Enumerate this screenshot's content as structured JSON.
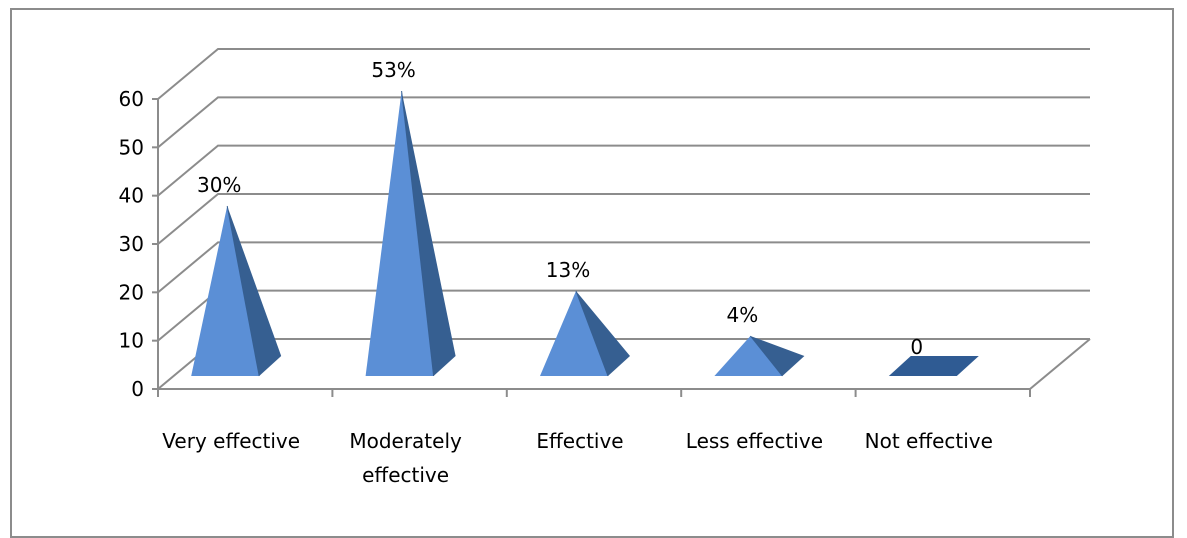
{
  "chart_data": {
    "type": "bar",
    "categories": [
      "Very effective",
      "Moderately effective",
      "Effective",
      "Less effective",
      "Not effective"
    ],
    "category_lines": [
      [
        "Very effective"
      ],
      [
        "Moderately",
        "effective"
      ],
      [
        "Effective"
      ],
      [
        "Less effective"
      ],
      [
        "Not effective"
      ]
    ],
    "values": [
      30,
      53,
      13,
      4,
      0
    ],
    "data_labels": [
      "30%",
      "53%",
      "13%",
      "4%",
      "0"
    ],
    "yticks": [
      "0",
      "10",
      "20",
      "30",
      "40",
      "50",
      "60"
    ],
    "ylim": [
      0,
      60
    ],
    "grid": true,
    "legend": "none",
    "bar_shape": "pyramid-3d",
    "title": "",
    "xlabel": "",
    "ylabel": ""
  },
  "colors": {
    "gridline": "#8c8c8c",
    "bar_front": "#5b8fd6",
    "bar_side": "#365f91",
    "bar_flat": "#2f5b93",
    "axis": "#8c8c8c"
  }
}
